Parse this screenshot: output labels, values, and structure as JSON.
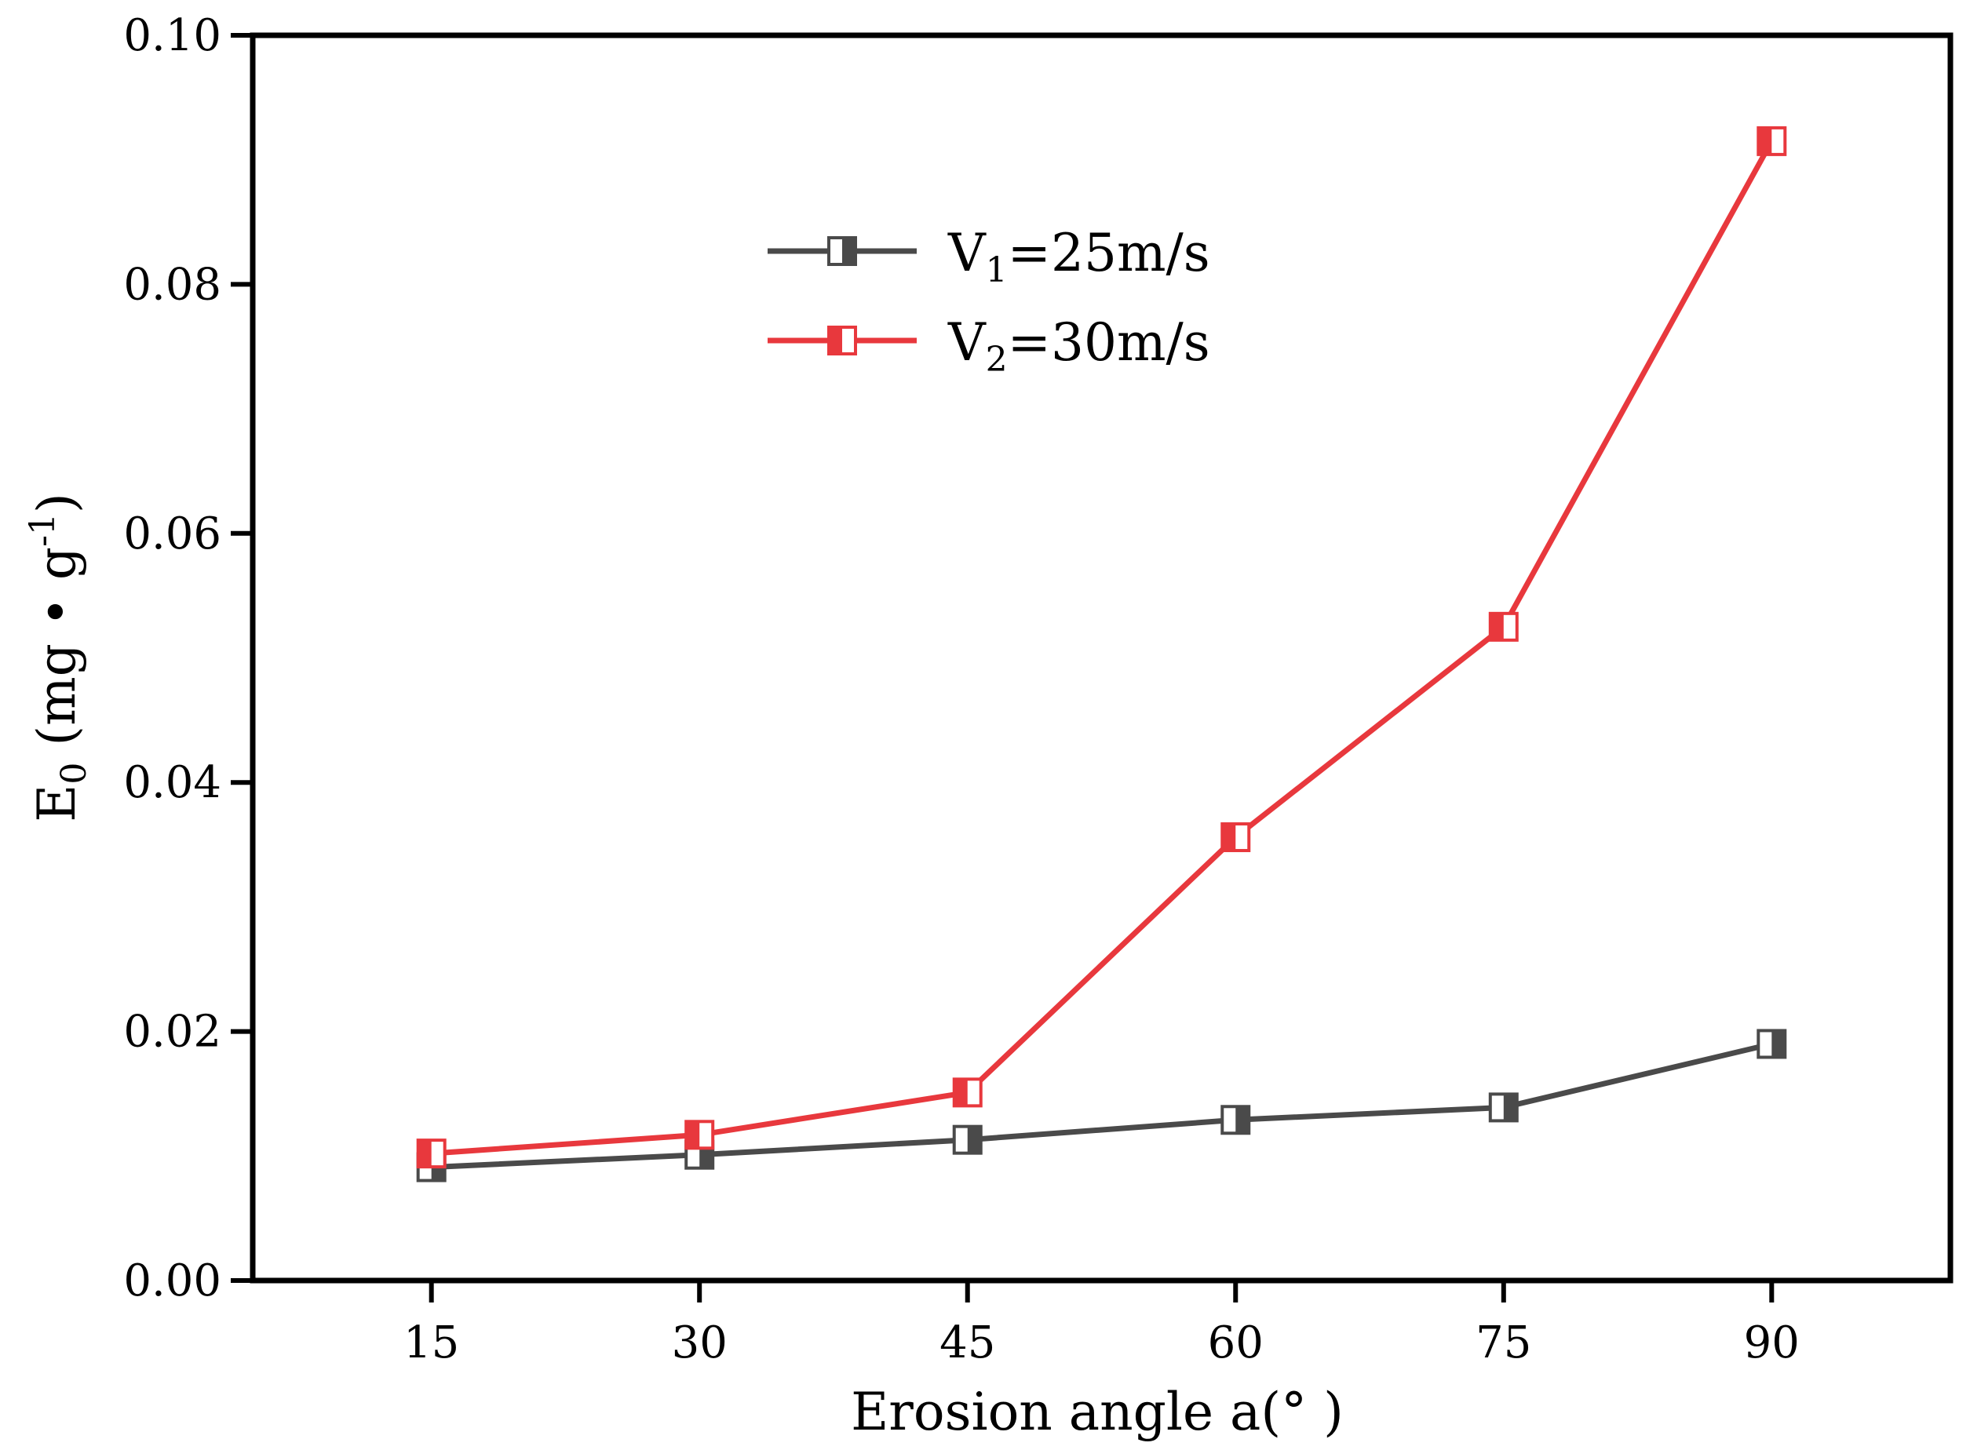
{
  "chart_data": {
    "type": "line",
    "x": [
      15,
      30,
      45,
      60,
      75,
      90
    ],
    "xticks": [
      "15",
      "30",
      "45",
      "60",
      "75",
      "90"
    ],
    "yticks": [
      "0.00",
      "0.02",
      "0.04",
      "0.06",
      "0.08",
      "0.10"
    ],
    "xlim": [
      5,
      100
    ],
    "ylim": [
      0,
      0.1
    ],
    "xlabel": "Erosion angle a(° )",
    "ylabel": {
      "base": "E",
      "sub": "0",
      "unit": " (mg • g",
      "sup": "-1",
      "close": ")"
    },
    "legend_position": "upper-center",
    "series": [
      {
        "name": "V1=25m/s",
        "name_base": "V",
        "name_sub": "1",
        "name_rest": "=25m/s",
        "color": "#4a4a4a",
        "values": [
          0.0091,
          0.0101,
          0.0113,
          0.0129,
          0.0139,
          0.019
        ]
      },
      {
        "name": "V2=30m/s",
        "name_base": "V",
        "name_sub": "2",
        "name_rest": "=30m/s",
        "color": "#e8383d",
        "values": [
          0.0102,
          0.0117,
          0.0151,
          0.0356,
          0.0525,
          0.0915
        ]
      }
    ]
  }
}
